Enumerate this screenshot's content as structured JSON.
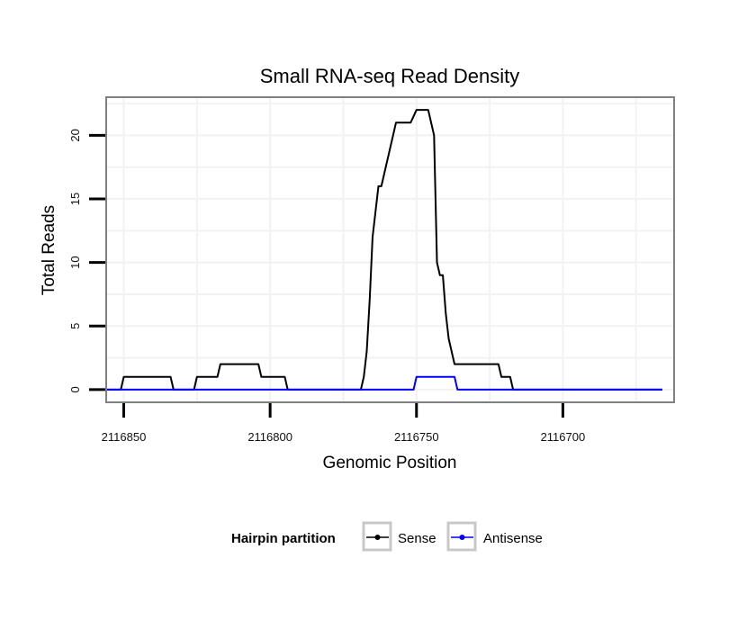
{
  "chart_data": {
    "type": "line",
    "title": "Small RNA-seq Read Density",
    "xlabel": "Genomic Position",
    "ylabel": "Total Reads",
    "xlim": [
      2116856,
      2116662
    ],
    "ylim": [
      -1,
      23
    ],
    "x_reversed": true,
    "grid": true,
    "x_ticks": [
      2116850,
      2116800,
      2116750,
      2116700
    ],
    "x_tick_labels": [
      "2116850",
      "2116800",
      "2116750",
      "2116700"
    ],
    "y_ticks": [
      0,
      5,
      10,
      15,
      20
    ],
    "y_tick_labels": [
      "0",
      "5",
      "10",
      "15",
      "20"
    ],
    "legend": {
      "title": "Hairpin partition",
      "placement": "bottom",
      "entries": [
        "Sense",
        "Antisense"
      ]
    },
    "series": [
      {
        "name": "Sense",
        "color": "#000000",
        "x": [
          2116856,
          2116851,
          2116850,
          2116834,
          2116833,
          2116826,
          2116825,
          2116818,
          2116817,
          2116804,
          2116803,
          2116795,
          2116794,
          2116770,
          2116769,
          2116768,
          2116767,
          2116766,
          2116765,
          2116764,
          2116763,
          2116762,
          2116761,
          2116760,
          2116759,
          2116758,
          2116757,
          2116756,
          2116755,
          2116754,
          2116753,
          2116752,
          2116750,
          2116748,
          2116747,
          2116746,
          2116744,
          2116743,
          2116742,
          2116741,
          2116740,
          2116739,
          2116738,
          2116737,
          2116736,
          2116735,
          2116734,
          2116733,
          2116722,
          2116721,
          2116718,
          2116717,
          2116666
        ],
        "y": [
          0,
          0,
          1,
          1,
          0,
          0,
          1,
          1,
          2,
          2,
          1,
          1,
          0,
          0,
          0,
          1,
          3,
          7,
          12,
          14,
          16,
          16,
          17,
          18,
          19,
          20,
          21,
          21,
          21,
          21,
          21,
          21,
          22,
          22,
          22,
          22,
          20,
          10,
          9,
          9,
          6,
          4,
          3,
          2,
          2,
          2,
          2,
          2,
          2,
          1,
          1,
          0,
          0
        ]
      },
      {
        "name": "Antisense",
        "color": "#0000ff",
        "x": [
          2116856,
          2116751,
          2116750,
          2116737,
          2116736,
          2116666
        ],
        "y": [
          0,
          0,
          1,
          1,
          0,
          0
        ]
      }
    ]
  }
}
